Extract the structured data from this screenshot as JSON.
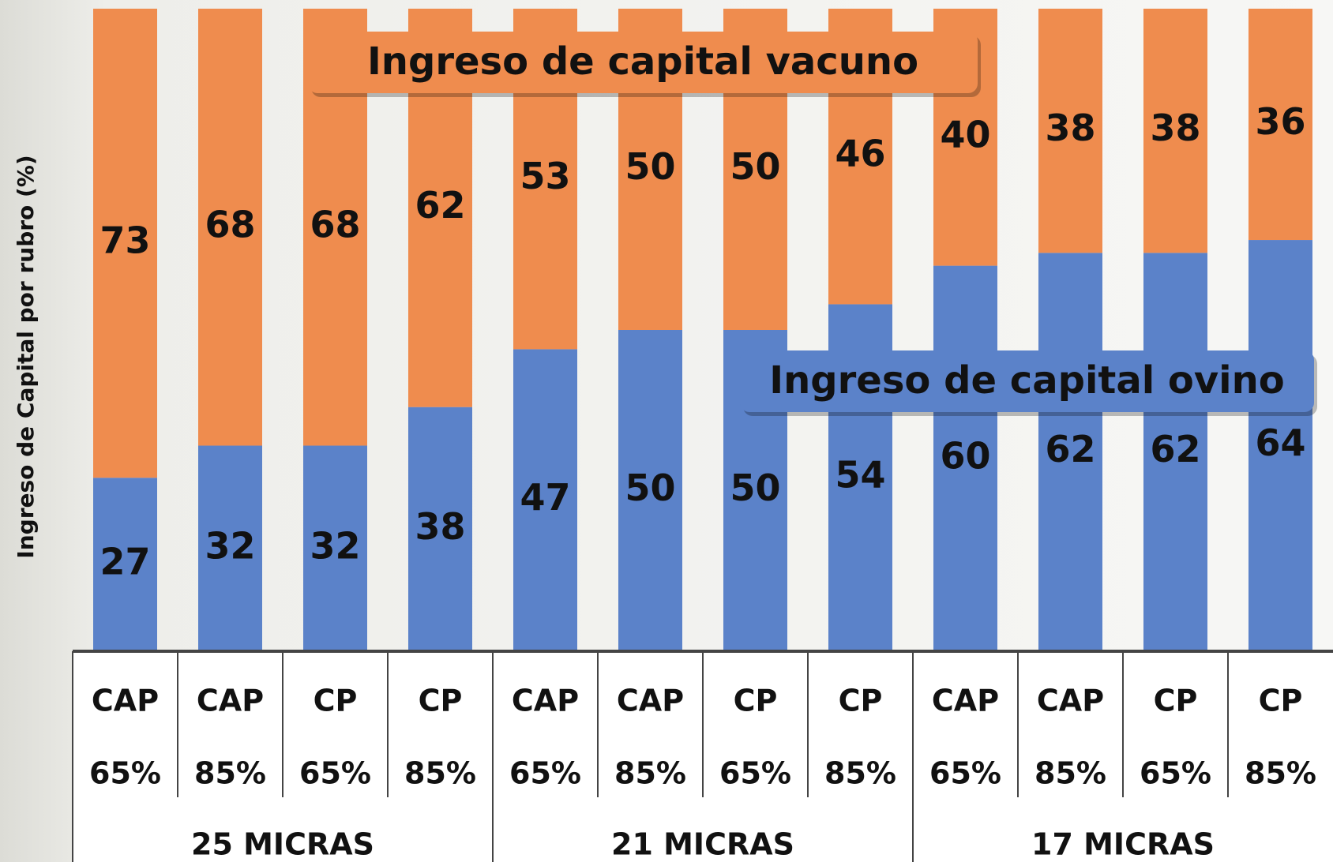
{
  "chart_data": {
    "type": "stacked-bar",
    "y_label": "Ingreso de Capital por rubro (%)",
    "categories": [
      [
        "CAP",
        "65%"
      ],
      [
        "CAP",
        "85%"
      ],
      [
        "CP",
        "65%"
      ],
      [
        "CP",
        "85%"
      ],
      [
        "CAP",
        "65%"
      ],
      [
        "CAP",
        "85%"
      ],
      [
        "CP",
        "65%"
      ],
      [
        "CP",
        "85%"
      ],
      [
        "CAP",
        "65%"
      ],
      [
        "CAP",
        "85%"
      ],
      [
        "CP",
        "65%"
      ],
      [
        "CP",
        "85%"
      ]
    ],
    "category_groups": [
      "25 MICRAS",
      "21 MICRAS",
      "17 MICRAS"
    ],
    "series": [
      {
        "name": "Ingreso de capital ovino",
        "color": "#5b82c9",
        "values": [
          27,
          32,
          32,
          38,
          47,
          50,
          50,
          54,
          60,
          62,
          62,
          64
        ]
      },
      {
        "name": "Ingreso de capital vacuno",
        "color": "#ef8c4e",
        "values": [
          73,
          68,
          68,
          62,
          53,
          50,
          50,
          46,
          40,
          38,
          38,
          36
        ]
      }
    ],
    "ylim": [
      0,
      100
    ]
  }
}
